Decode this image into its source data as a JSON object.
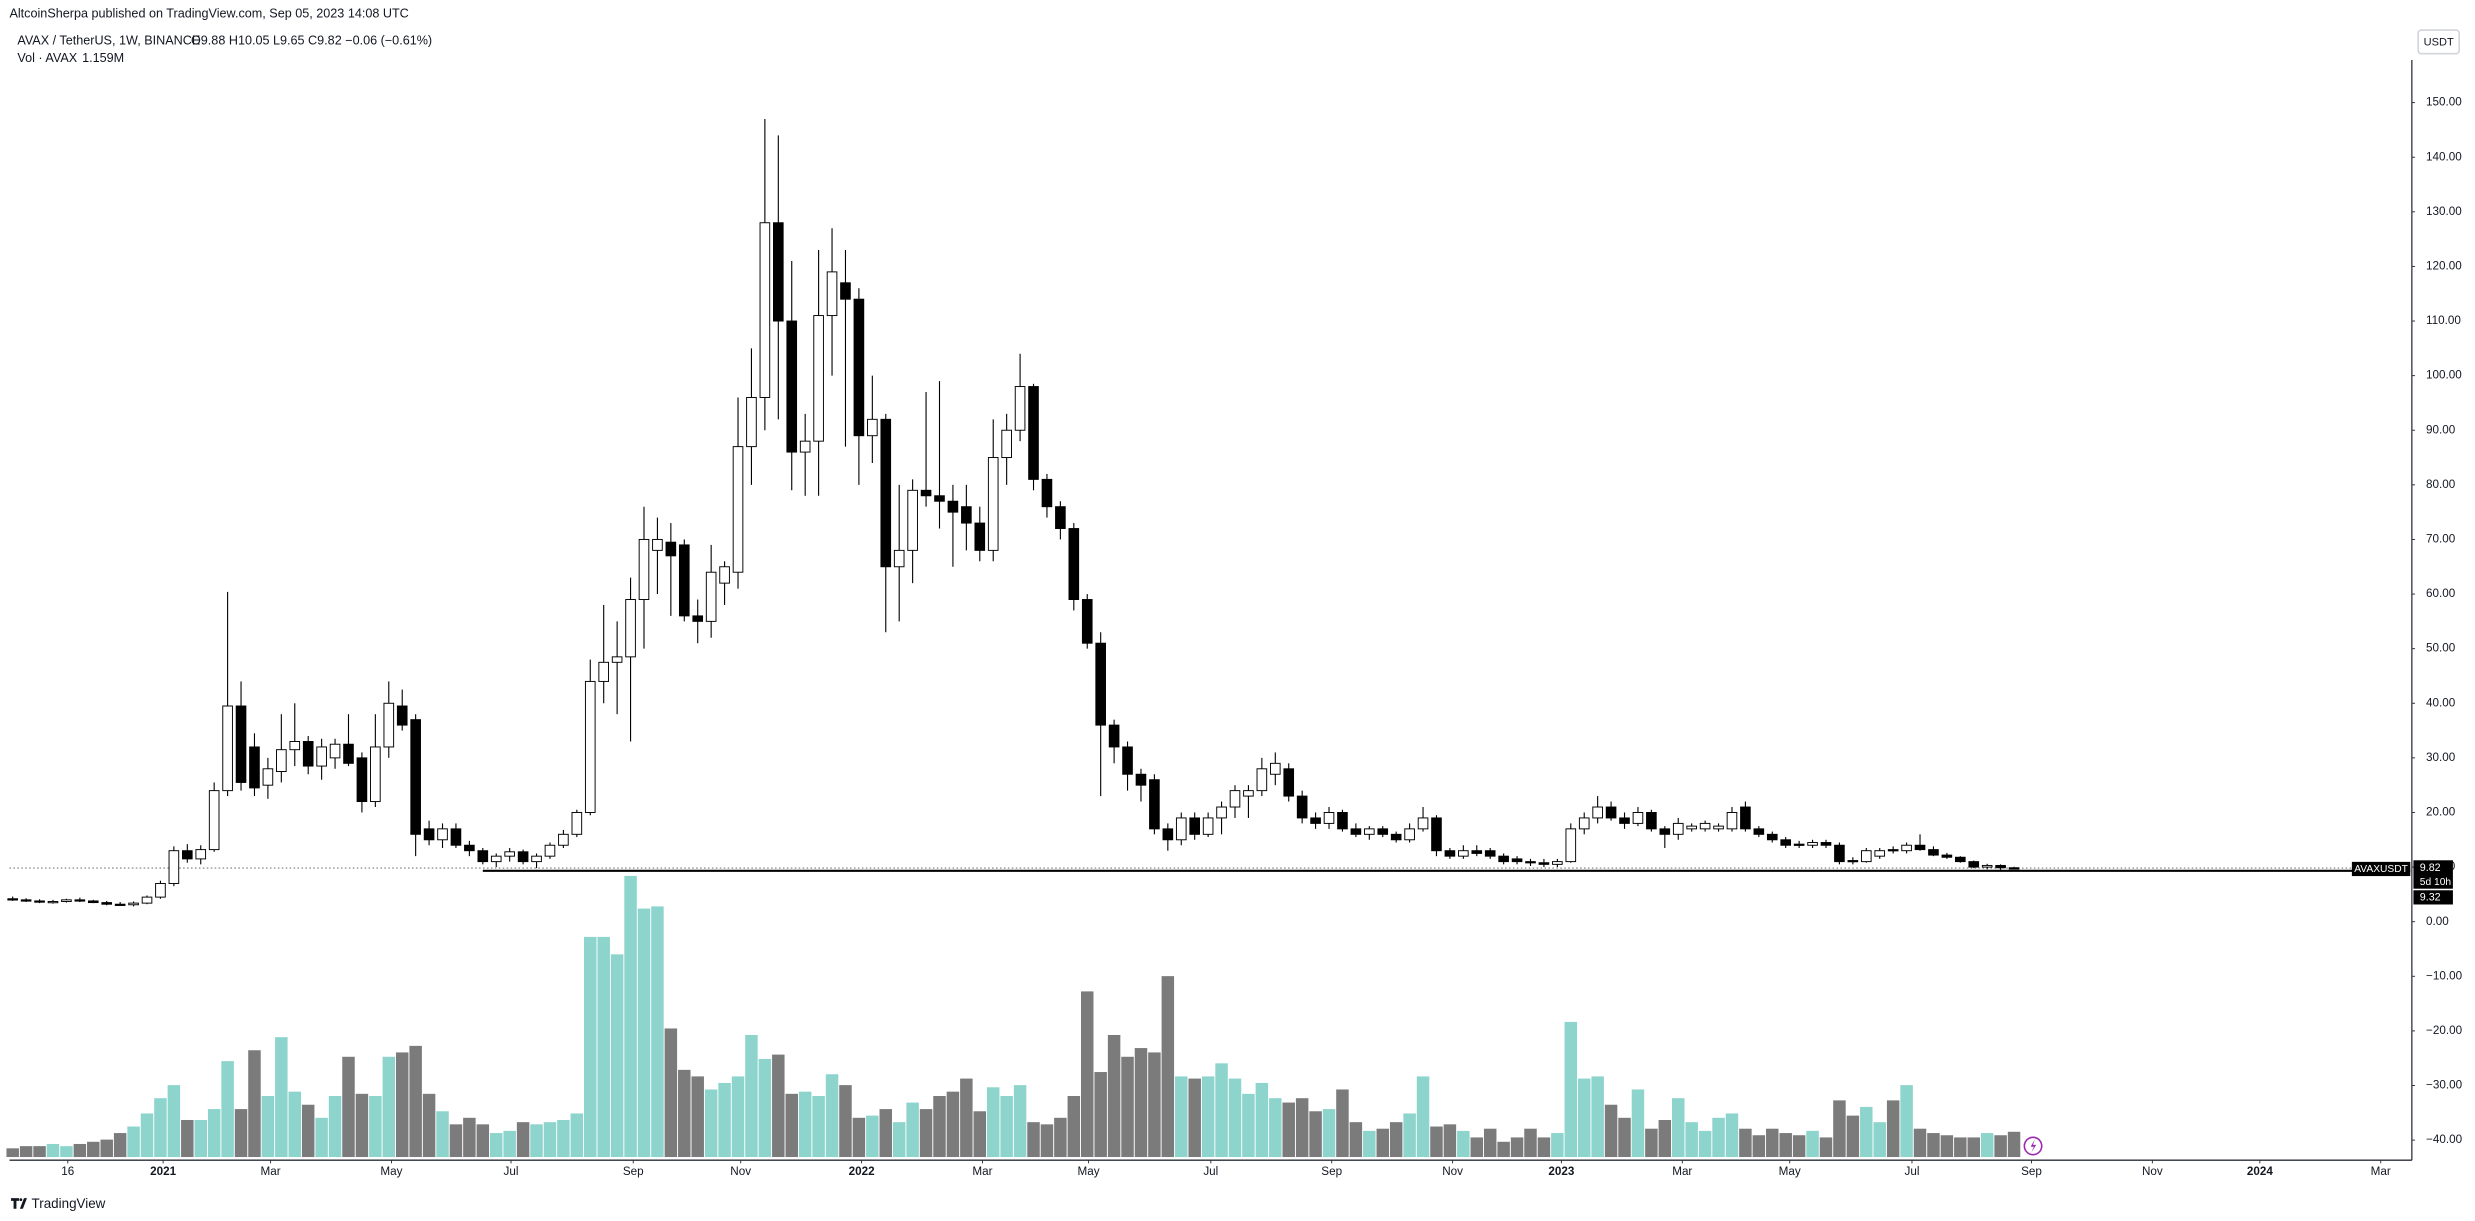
{
  "header": {
    "published": "AltcoinSherpa published on TradingView.com, Sep 05, 2023 14:08 UTC",
    "symbol": "AVAX / TetherUS, 1W, BINANCE",
    "ohlc": "O9.88 H10.05 L9.65 C9.82 −0.06 (−0.61%)",
    "volume_label": "Vol · AVAX",
    "volume_value": "1.159M",
    "currency_button": "USDT"
  },
  "tags": {
    "symbol": "AVAXUSDT",
    "price": "9.82",
    "countdown": "5d 10h",
    "line_price": "9.32"
  },
  "footer": "TradingView",
  "chart_data": {
    "type": "candlestick",
    "up_color": "#ffffff",
    "down_color": "#000000",
    "outline_color": "#000000",
    "volume_up_color": "#8dd4cc",
    "volume_down_color": "#7b7b7b",
    "last_price": 9.82,
    "hline": 9.32,
    "hline_start": 35,
    "ylim": [
      -43.1,
      157.8
    ],
    "yticks": [
      {
        "value": 150,
        "label": "150.00"
      },
      {
        "value": 140,
        "label": "140.00"
      },
      {
        "value": 130,
        "label": "130.00"
      },
      {
        "value": 120,
        "label": "120.00"
      },
      {
        "value": 110,
        "label": "110.00"
      },
      {
        "value": 100,
        "label": "100.00"
      },
      {
        "value": 90,
        "label": "90.00"
      },
      {
        "value": 80,
        "label": "80.00"
      },
      {
        "value": 70,
        "label": "70.00"
      },
      {
        "value": 60,
        "label": "60.00"
      },
      {
        "value": 50,
        "label": "50.00"
      },
      {
        "value": 40,
        "label": "40.00"
      },
      {
        "value": 30,
        "label": "30.00"
      },
      {
        "value": 20,
        "label": "20.00"
      },
      {
        "value": 10,
        "label": "10.00"
      },
      {
        "value": 0,
        "label": "0.00"
      },
      {
        "value": -10,
        "label": "−10.00"
      },
      {
        "value": -20,
        "label": "−20.00"
      },
      {
        "value": -30,
        "label": "−30.00"
      },
      {
        "value": -40,
        "label": "−40.00"
      }
    ],
    "xlim": [
      -0.24,
      178.5
    ],
    "xticks": [
      {
        "value": 4.1,
        "label": "16"
      },
      {
        "value": 11.2,
        "label": "2021"
      },
      {
        "value": 19.2,
        "label": "Mar"
      },
      {
        "value": 28.2,
        "label": "May"
      },
      {
        "value": 37.1,
        "label": "Jul"
      },
      {
        "value": 46.2,
        "label": "Sep"
      },
      {
        "value": 54.2,
        "label": "Nov"
      },
      {
        "value": 63.2,
        "label": "2022"
      },
      {
        "value": 72.2,
        "label": "Mar"
      },
      {
        "value": 80.1,
        "label": "May"
      },
      {
        "value": 89.2,
        "label": "Jul"
      },
      {
        "value": 98.2,
        "label": "Sep"
      },
      {
        "value": 107.2,
        "label": "Nov"
      },
      {
        "value": 115.3,
        "label": "2023"
      },
      {
        "value": 124.3,
        "label": "Mar"
      },
      {
        "value": 132.3,
        "label": "May"
      },
      {
        "value": 141.4,
        "label": "Jul"
      },
      {
        "value": 150.3,
        "label": "Sep"
      },
      {
        "value": 159.3,
        "label": "Nov"
      },
      {
        "value": 167.3,
        "label": "2024"
      },
      {
        "value": 176.3,
        "label": "Mar"
      }
    ],
    "volume_lim": [
      0,
      15.1
    ],
    "candles": [
      [
        4.2,
        4.6,
        3.8,
        4.0
      ],
      [
        4.0,
        4.3,
        3.6,
        3.8
      ],
      [
        3.8,
        4.1,
        3.4,
        3.6
      ],
      [
        3.6,
        4.0,
        3.3,
        3.7
      ],
      [
        3.7,
        4.2,
        3.5,
        4.0
      ],
      [
        4.0,
        4.4,
        3.6,
        3.8
      ],
      [
        3.8,
        4.0,
        3.4,
        3.5
      ],
      [
        3.5,
        3.8,
        3.0,
        3.2
      ],
      [
        3.2,
        3.6,
        2.9,
        3.1
      ],
      [
        3.1,
        3.7,
        2.8,
        3.4
      ],
      [
        3.4,
        4.8,
        3.2,
        4.5
      ],
      [
        4.5,
        7.5,
        4.2,
        7.0
      ],
      [
        7.0,
        13.8,
        6.5,
        13.0
      ],
      [
        13.0,
        14.2,
        10.8,
        11.5
      ],
      [
        11.5,
        14.0,
        10.5,
        13.2
      ],
      [
        13.2,
        25.5,
        12.8,
        24.0
      ],
      [
        24.0,
        60.4,
        23.0,
        39.5
      ],
      [
        39.5,
        44.0,
        24.0,
        25.5
      ],
      [
        32.0,
        34.5,
        23.0,
        24.5
      ],
      [
        25.0,
        30.0,
        22.5,
        28.0
      ],
      [
        27.5,
        38.0,
        25.5,
        31.5
      ],
      [
        31.5,
        40.0,
        28.5,
        33.0
      ],
      [
        33.0,
        34.0,
        27.0,
        28.5
      ],
      [
        28.5,
        33.5,
        26.0,
        32.0
      ],
      [
        30.0,
        33.5,
        28.0,
        32.5
      ],
      [
        32.5,
        38.0,
        28.5,
        29.0
      ],
      [
        30.0,
        31.0,
        20.0,
        22.0
      ],
      [
        22.0,
        38.0,
        21.0,
        32.0
      ],
      [
        32.0,
        44.0,
        30.0,
        40.0
      ],
      [
        39.5,
        42.5,
        35.0,
        36.0
      ],
      [
        37.0,
        38.0,
        12.0,
        16.0
      ],
      [
        17.0,
        18.5,
        14.0,
        15.0
      ],
      [
        15.0,
        18.0,
        13.5,
        17.0
      ],
      [
        17.0,
        18.0,
        13.5,
        14.0
      ],
      [
        14.0,
        14.8,
        12.0,
        13.0
      ],
      [
        13.0,
        13.5,
        10.5,
        11.0
      ],
      [
        11.0,
        12.5,
        10.0,
        12.0
      ],
      [
        12.0,
        13.5,
        11.0,
        12.8
      ],
      [
        12.8,
        13.2,
        10.5,
        11.0
      ],
      [
        11.0,
        12.5,
        9.8,
        12.0
      ],
      [
        12.0,
        14.5,
        11.5,
        14.0
      ],
      [
        14.0,
        16.8,
        13.5,
        16.0
      ],
      [
        16.0,
        20.5,
        15.5,
        20.0
      ],
      [
        20.0,
        48.0,
        19.5,
        44.0
      ],
      [
        44.0,
        58.0,
        40.0,
        47.5
      ],
      [
        47.5,
        55.0,
        38.0,
        48.5
      ],
      [
        48.5,
        63.0,
        33.0,
        59.0
      ],
      [
        59.0,
        76.0,
        50.0,
        70.0
      ],
      [
        68.0,
        74.0,
        60.0,
        70.0
      ],
      [
        69.5,
        73.0,
        56.0,
        67.0
      ],
      [
        69.0,
        70.0,
        55.0,
        56.0
      ],
      [
        56.0,
        59.0,
        51.0,
        55.0
      ],
      [
        55.0,
        69.0,
        52.0,
        64.0
      ],
      [
        62.0,
        66.0,
        58.0,
        65.0
      ],
      [
        64.0,
        96.0,
        61.0,
        87.0
      ],
      [
        87.0,
        105.0,
        80.0,
        96.0
      ],
      [
        96.0,
        147.0,
        90.0,
        128.0
      ],
      [
        128.0,
        144.0,
        92.0,
        110.0
      ],
      [
        110.0,
        121.0,
        79.0,
        86.0
      ],
      [
        86.0,
        93.0,
        78.0,
        88.0
      ],
      [
        88.0,
        123.0,
        78.0,
        111.0
      ],
      [
        111.0,
        127.0,
        100.0,
        119.0
      ],
      [
        117.0,
        123.0,
        87.0,
        114.0
      ],
      [
        114.0,
        116.0,
        80.0,
        89.0
      ],
      [
        89.0,
        100.0,
        84.0,
        92.0
      ],
      [
        92.0,
        93.0,
        53.0,
        65.0
      ],
      [
        65.0,
        80.0,
        55.0,
        68.0
      ],
      [
        68.0,
        81.0,
        62.0,
        79.0
      ],
      [
        79.0,
        97.0,
        76.0,
        78.0
      ],
      [
        78.0,
        99.0,
        72.0,
        77.0
      ],
      [
        77.0,
        80.0,
        65.0,
        75.0
      ],
      [
        76.0,
        80.0,
        68.0,
        73.0
      ],
      [
        73.0,
        76.0,
        66.0,
        68.0
      ],
      [
        68.0,
        92.0,
        66.0,
        85.0
      ],
      [
        85.0,
        93.0,
        80.0,
        90.0
      ],
      [
        90.0,
        104.0,
        88.0,
        98.0
      ],
      [
        98.0,
        98.5,
        79.0,
        81.0
      ],
      [
        81.0,
        82.0,
        74.0,
        76.0
      ],
      [
        76.0,
        77.0,
        70.0,
        72.0
      ],
      [
        72.0,
        73.0,
        57.0,
        59.0
      ],
      [
        59.0,
        60.0,
        50.0,
        51.0
      ],
      [
        51.0,
        53.0,
        23.0,
        36.0
      ],
      [
        36.0,
        37.0,
        29.0,
        32.0
      ],
      [
        32.0,
        33.0,
        24.0,
        27.0
      ],
      [
        27.0,
        28.0,
        22.0,
        25.0
      ],
      [
        26.0,
        27.0,
        16.0,
        17.0
      ],
      [
        17.0,
        18.0,
        13.0,
        15.0
      ],
      [
        15.0,
        20.0,
        14.0,
        19.0
      ],
      [
        19.0,
        20.0,
        15.0,
        16.0
      ],
      [
        16.0,
        20.0,
        15.5,
        19.0
      ],
      [
        19.0,
        22.0,
        16.0,
        21.0
      ],
      [
        21.0,
        25.0,
        19.0,
        24.0
      ],
      [
        23.0,
        25.0,
        19.0,
        24.0
      ],
      [
        24.0,
        30.0,
        23.0,
        28.0
      ],
      [
        27.0,
        31.0,
        25.0,
        29.0
      ],
      [
        28.0,
        29.0,
        22.0,
        23.0
      ],
      [
        23.0,
        24.0,
        18.0,
        19.0
      ],
      [
        19.0,
        20.0,
        17.0,
        18.0
      ],
      [
        18.0,
        21.0,
        17.0,
        20.0
      ],
      [
        20.0,
        20.5,
        16.5,
        17.0
      ],
      [
        17.0,
        18.0,
        15.5,
        16.0
      ],
      [
        16.0,
        17.5,
        15.0,
        17.0
      ],
      [
        17.0,
        17.5,
        15.5,
        16.0
      ],
      [
        16.0,
        16.5,
        14.5,
        15.0
      ],
      [
        15.0,
        18.0,
        14.5,
        17.0
      ],
      [
        17.0,
        21.0,
        16.5,
        19.0
      ],
      [
        19.0,
        19.5,
        12.0,
        13.0
      ],
      [
        13.0,
        13.5,
        11.5,
        12.0
      ],
      [
        12.0,
        14.0,
        11.5,
        13.0
      ],
      [
        13.0,
        14.0,
        12.0,
        12.5
      ],
      [
        13.0,
        13.5,
        11.5,
        12.0
      ],
      [
        12.0,
        12.5,
        10.5,
        11.0
      ],
      [
        11.5,
        12.0,
        10.5,
        11.0
      ],
      [
        11.0,
        11.5,
        10.2,
        10.8
      ],
      [
        10.8,
        11.5,
        10.0,
        10.5
      ],
      [
        10.5,
        11.5,
        10.0,
        11.0
      ],
      [
        11.0,
        18.0,
        10.8,
        17.0
      ],
      [
        17.0,
        20.0,
        16.0,
        19.0
      ],
      [
        19.0,
        23.0,
        18.0,
        21.0
      ],
      [
        21.0,
        22.0,
        18.5,
        19.0
      ],
      [
        19.0,
        20.0,
        17.0,
        18.0
      ],
      [
        18.0,
        21.0,
        17.5,
        20.0
      ],
      [
        20.0,
        20.5,
        16.5,
        17.0
      ],
      [
        17.0,
        17.5,
        13.5,
        16.0
      ],
      [
        16.0,
        19.0,
        15.0,
        18.0
      ],
      [
        17.0,
        18.0,
        16.5,
        17.5
      ],
      [
        17.0,
        18.5,
        16.5,
        18.0
      ],
      [
        17.0,
        18.0,
        16.5,
        17.5
      ],
      [
        17.0,
        21.0,
        16.5,
        20.0
      ],
      [
        21.0,
        22.0,
        16.5,
        17.0
      ],
      [
        17.0,
        17.5,
        15.5,
        16.0
      ],
      [
        16.0,
        16.5,
        14.5,
        15.0
      ],
      [
        15.0,
        15.5,
        13.5,
        14.0
      ],
      [
        14.2,
        14.8,
        13.5,
        14.0
      ],
      [
        14.0,
        15.0,
        13.5,
        14.5
      ],
      [
        14.5,
        15.0,
        13.5,
        14.0
      ],
      [
        14.0,
        14.5,
        10.5,
        11.0
      ],
      [
        11.2,
        11.8,
        10.5,
        11.0
      ],
      [
        11.0,
        13.5,
        10.8,
        13.0
      ],
      [
        12.0,
        13.5,
        11.5,
        13.0
      ],
      [
        13.2,
        13.8,
        12.5,
        13.0
      ],
      [
        13.0,
        14.5,
        12.5,
        14.0
      ],
      [
        14.0,
        16.0,
        13.0,
        13.2
      ],
      [
        13.2,
        13.8,
        12.0,
        12.2
      ],
      [
        12.2,
        12.6,
        11.5,
        11.8
      ],
      [
        11.8,
        12.0,
        10.8,
        11.0
      ],
      [
        11.0,
        11.2,
        9.8,
        10.0
      ],
      [
        10.0,
        10.6,
        9.6,
        10.3
      ],
      [
        10.3,
        10.5,
        9.5,
        9.88
      ],
      [
        9.88,
        10.05,
        9.65,
        9.82
      ]
    ],
    "volume": [
      0.4,
      0.5,
      0.5,
      0.6,
      0.5,
      0.6,
      0.7,
      0.8,
      1.1,
      1.4,
      2.0,
      2.7,
      3.3,
      1.7,
      1.7,
      2.2,
      4.4,
      2.2,
      4.9,
      2.8,
      5.5,
      3.0,
      2.4,
      1.8,
      2.8,
      4.6,
      2.9,
      2.8,
      4.6,
      4.8,
      5.1,
      2.9,
      2.1,
      1.5,
      1.8,
      1.5,
      1.1,
      1.2,
      1.6,
      1.5,
      1.6,
      1.7,
      2.0,
      10.1,
      10.1,
      9.3,
      12.9,
      11.4,
      11.5,
      5.9,
      4.0,
      3.7,
      3.1,
      3.4,
      3.7,
      5.6,
      4.5,
      4.7,
      2.9,
      3.0,
      2.8,
      3.8,
      3.3,
      1.8,
      1.9,
      2.2,
      1.6,
      2.5,
      2.2,
      2.8,
      3.0,
      3.6,
      2.1,
      3.2,
      2.8,
      3.3,
      1.6,
      1.5,
      1.8,
      2.8,
      7.6,
      3.9,
      5.6,
      4.6,
      5.0,
      4.8,
      8.3,
      3.7,
      3.6,
      3.7,
      4.3,
      3.6,
      2.9,
      3.4,
      2.7,
      2.5,
      2.7,
      2.1,
      2.2,
      3.1,
      1.6,
      1.2,
      1.3,
      1.6,
      2.0,
      3.7,
      1.4,
      1.5,
      1.2,
      0.9,
      1.3,
      0.7,
      0.9,
      1.3,
      0.9,
      1.1,
      6.2,
      3.6,
      3.7,
      2.4,
      1.8,
      3.1,
      1.3,
      1.7,
      2.7,
      1.6,
      1.2,
      1.8,
      2.0,
      1.3,
      1.0,
      1.3,
      1.1,
      1.0,
      1.2,
      0.9,
      2.6,
      1.9,
      2.3,
      1.6,
      2.6,
      3.3,
      1.3,
      1.1,
      1.0,
      0.9,
      0.9,
      1.1,
      1.0,
      1.159
    ]
  }
}
